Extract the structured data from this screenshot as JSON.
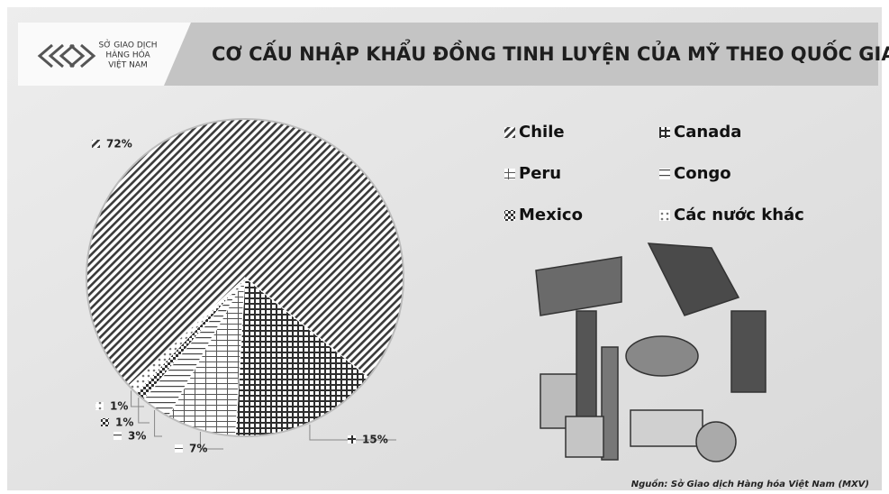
{
  "header": {
    "logo_lines": [
      "SỞ GIAO DỊCH",
      "HÀNG HÓA",
      "VIỆT NAM"
    ]
  },
  "chart_data": {
    "type": "pie",
    "title": "CƠ CẤU NHẬP KHẨU ĐỒNG TINH LUYỆN CỦA MỸ THEO QUỐC GIA",
    "categories": [
      "Chile",
      "Canada",
      "Peru",
      "Congo",
      "Mexico",
      "Các nước khác"
    ],
    "values": [
      72,
      15,
      7,
      3,
      1,
      1
    ],
    "value_labels": [
      "72%",
      "15%",
      "7%",
      "3%",
      "1%",
      "1%"
    ],
    "colors": [
      "#3a3a3a",
      "#2e2e2e",
      "#555555",
      "#444444",
      "#303030",
      "#777777"
    ]
  },
  "footer": {
    "source": "Nguồn: Sở Giao dịch Hàng hóa Việt Nam (MXV)"
  }
}
